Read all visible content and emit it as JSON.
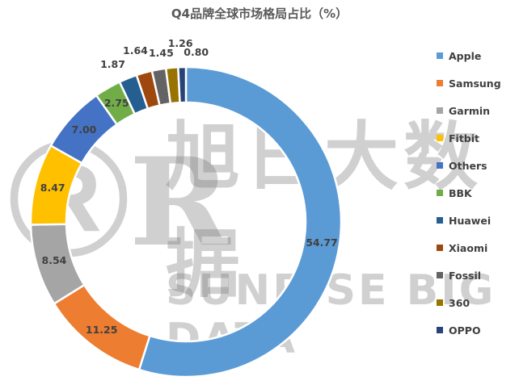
{
  "chart_data": {
    "type": "pie",
    "subtype": "donut",
    "title": "Q4品牌全球市场格局占比（%）",
    "categories": [
      "Apple",
      "Samsung",
      "Garmin",
      "Fitbit",
      "Others",
      "BBK",
      "Huawei",
      "Xiaomi",
      "Fossil",
      "360",
      "OPPO"
    ],
    "values": [
      54.77,
      11.25,
      8.54,
      8.47,
      7.0,
      2.75,
      1.87,
      1.64,
      1.45,
      1.26,
      0.8
    ],
    "labels": [
      "54.77",
      "11.25",
      "8.54",
      "8.47",
      "7.00",
      "2.75",
      "1.87",
      "1.64",
      "1.45",
      "1.26",
      "0.80"
    ],
    "colors": [
      "#5B9BD5",
      "#ED7D31",
      "#A5A5A5",
      "#FFC000",
      "#4472C4",
      "#70AD47",
      "#255E91",
      "#9E480E",
      "#636363",
      "#997300",
      "#264478"
    ],
    "legend_position": "right"
  },
  "watermark": {
    "logo": "SR",
    "cn": "旭日大数据",
    "en": "SUNRISE BIG DATA"
  }
}
